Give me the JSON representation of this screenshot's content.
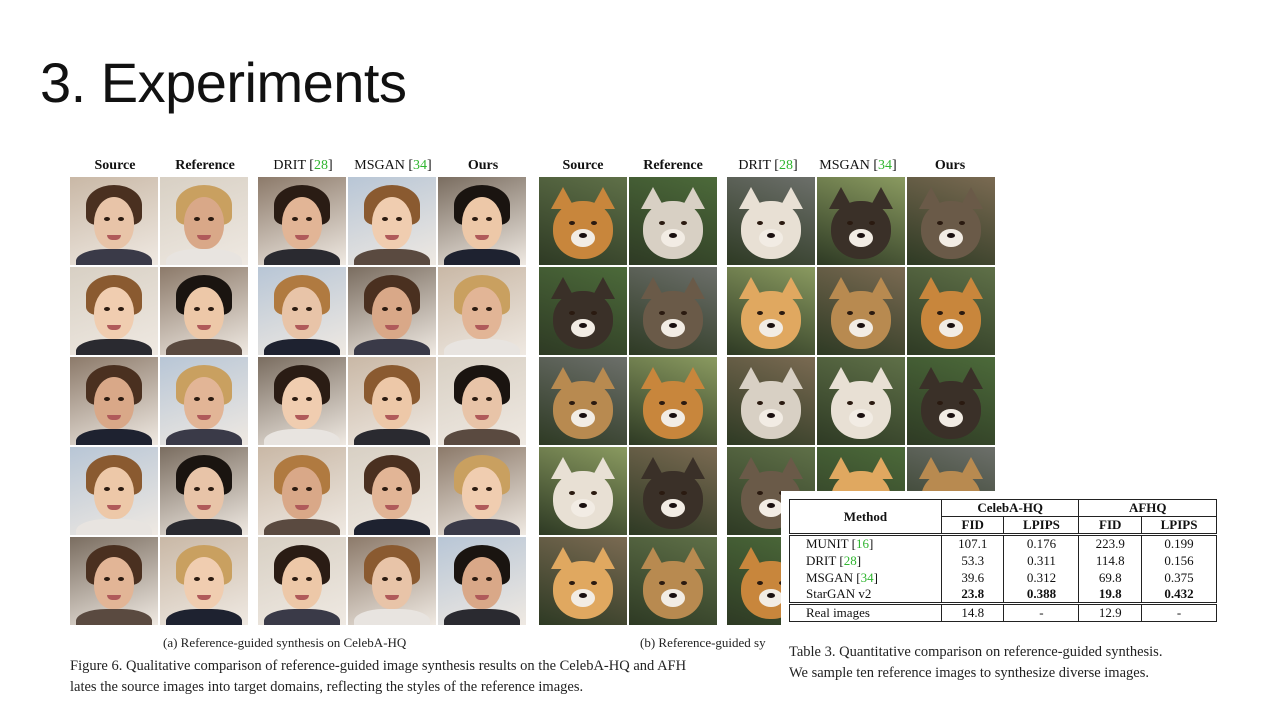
{
  "slide": {
    "title": "3. Experiments"
  },
  "figure": {
    "left_headers": [
      {
        "text": "Source",
        "ref": ""
      },
      {
        "text": "Reference",
        "ref": ""
      },
      {
        "text": "DRIT ",
        "ref": "28"
      },
      {
        "text": "MSGAN ",
        "ref": "34"
      },
      {
        "text": "Ours",
        "ref": ""
      }
    ],
    "right_headers": [
      {
        "text": "Source",
        "ref": ""
      },
      {
        "text": "Reference",
        "ref": ""
      },
      {
        "text": "DRIT ",
        "ref": "28"
      },
      {
        "text": "MSGAN ",
        "ref": "34"
      },
      {
        "text": "Ours",
        "ref": ""
      }
    ],
    "subcaption_a": "(a) Reference-guided synthesis on CelebA-HQ",
    "subcaption_b": "(b) Reference-guided sy",
    "caption_line1": "Figure 6. Qualitative comparison of reference-guided image synthesis results on the CelebA-HQ and AFH",
    "caption_line2": "lates the source images into target domains, reflecting the styles of the reference images."
  },
  "table": {
    "group_headers": [
      "CelebA-HQ",
      "AFHQ"
    ],
    "method_header": "Method",
    "metric_headers": [
      "FID",
      "LPIPS",
      "FID",
      "LPIPS"
    ],
    "rows": [
      {
        "method": "MUNIT ",
        "ref": "16",
        "values": [
          "107.1",
          "0.176",
          "223.9",
          "0.199"
        ],
        "bold": false
      },
      {
        "method": "DRIT ",
        "ref": "28",
        "values": [
          "53.3",
          "0.311",
          "114.8",
          "0.156"
        ],
        "bold": false
      },
      {
        "method": "MSGAN ",
        "ref": "34",
        "values": [
          "39.6",
          "0.312",
          "69.8",
          "0.375"
        ],
        "bold": false
      },
      {
        "method": "StarGAN v2",
        "ref": "",
        "values": [
          "23.8",
          "0.388",
          "19.8",
          "0.432"
        ],
        "bold": true
      }
    ],
    "real_row": {
      "method": "Real images",
      "values": [
        "14.8",
        "-",
        "12.9",
        "-"
      ]
    },
    "caption_line1": "Table 3. Quantitative comparison on reference-guided synthesis.",
    "caption_line2": "We sample ten reference images to synthesize diverse images."
  },
  "colors": {
    "citation": "#2fb52f",
    "faces_bg": [
      "#c9b8a6",
      "#d8d0c4",
      "#8c7a6a",
      "#b8c6d6",
      "#7a6d60"
    ],
    "animals_bg": [
      "#5f7048",
      "#4c6a3a",
      "#6c6f6a",
      "#8a9a60",
      "#7a6a52"
    ]
  }
}
